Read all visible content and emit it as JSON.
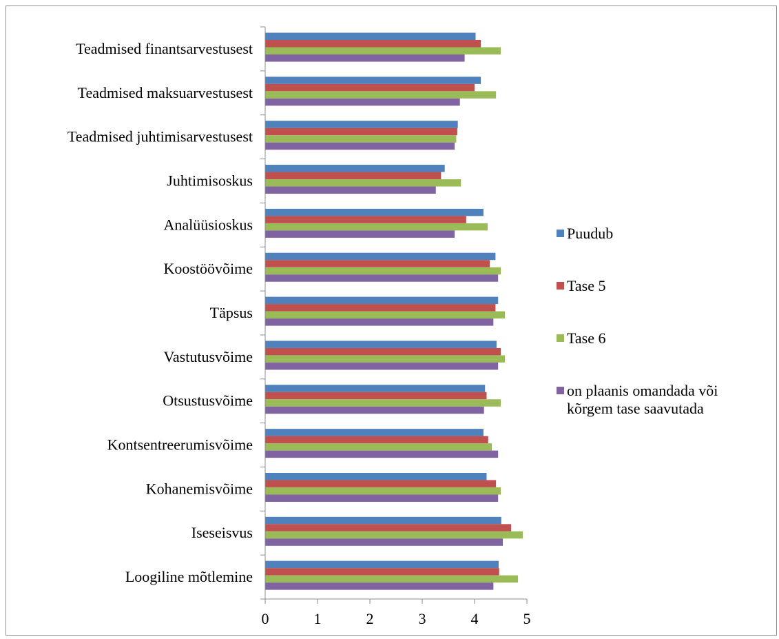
{
  "chart_data": {
    "type": "bar",
    "orientation": "horizontal",
    "categories": [
      "Teadmised finantsarvestusest",
      "Teadmised maksuarvestusest",
      "Teadmised juhtimisarvestusest",
      "Juhtimisoskus",
      "Analüüsioskus",
      "Koostöövõime",
      "Täpsus",
      "Vastutusvõime",
      "Otsustusvõime",
      "Kontsentreerumisvõime",
      "Kohanemisvõime",
      "Iseseisvus",
      "Loogiline mõtlemine"
    ],
    "series": [
      {
        "name": "Puudub",
        "color": "#4f81bd",
        "values": [
          4.02,
          4.12,
          3.68,
          3.43,
          4.17,
          4.4,
          4.45,
          4.42,
          4.2,
          4.17,
          4.23,
          4.51,
          4.46
        ]
      },
      {
        "name": "Tase 5",
        "color": "#c0504d",
        "values": [
          4.12,
          4.0,
          3.67,
          3.36,
          3.84,
          4.29,
          4.4,
          4.5,
          4.23,
          4.26,
          4.41,
          4.7,
          4.47
        ]
      },
      {
        "name": "Tase 6",
        "color": "#9bbb59",
        "values": [
          4.5,
          4.41,
          3.65,
          3.74,
          4.25,
          4.5,
          4.58,
          4.58,
          4.5,
          4.33,
          4.5,
          4.92,
          4.83
        ]
      },
      {
        "name": "on plaanis omandada või kõrgem tase saavutada",
        "color": "#8064a2",
        "legend_lines": [
          "on plaanis omandada või",
          "kõrgem tase saavutada"
        ],
        "values": [
          3.81,
          3.72,
          3.62,
          3.26,
          3.62,
          4.45,
          4.36,
          4.45,
          4.18,
          4.45,
          4.45,
          4.54,
          4.36
        ]
      }
    ],
    "xlim": [
      0,
      5
    ],
    "xticks": [
      "0",
      "1",
      "2",
      "3",
      "4",
      "5"
    ],
    "grid": false,
    "legend_position": "right",
    "title": "",
    "xlabel": "",
    "ylabel": ""
  }
}
